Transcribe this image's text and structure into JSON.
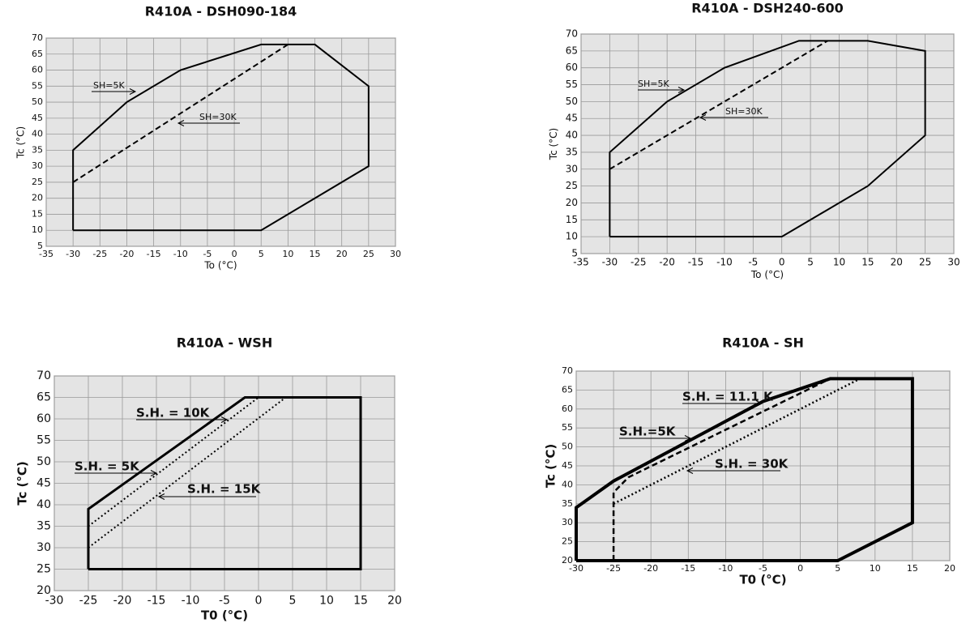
{
  "chart_data": [
    {
      "type": "line",
      "title": "R410A - DSH090-184",
      "x_label": "To (°C)",
      "y_label": "Tc (°C)",
      "xlim": [
        -35,
        30
      ],
      "xticks": [
        -35,
        -30,
        -25,
        -20,
        -15,
        -10,
        -5,
        0,
        5,
        10,
        15,
        20,
        25,
        30
      ],
      "ylim": [
        5,
        70
      ],
      "yticks": [
        5,
        10,
        15,
        20,
        25,
        30,
        35,
        40,
        45,
        50,
        55,
        60,
        65,
        70
      ],
      "grid": true,
      "series": [
        {
          "name": "SH=5K",
          "color": "#000000",
          "style": "solid",
          "x": [
            -30,
            -30,
            -20,
            -10,
            5,
            15,
            25,
            25,
            5,
            -30
          ],
          "values": [
            10,
            35,
            50,
            60,
            68,
            68,
            55,
            30,
            10,
            10
          ]
        },
        {
          "name": "SH=30K",
          "color": "#000000",
          "style": "dashed",
          "x": [
            -30,
            10
          ],
          "values": [
            25,
            68
          ]
        }
      ]
    },
    {
      "type": "line",
      "title": "R410A - DSH240-600",
      "x_label": "To (°C)",
      "y_label": "Tc (°C)",
      "xlim": [
        -35,
        30
      ],
      "xticks": [
        -35,
        -30,
        -25,
        -20,
        -15,
        -10,
        -5,
        0,
        5,
        10,
        15,
        20,
        25,
        30
      ],
      "ylim": [
        5,
        70
      ],
      "yticks": [
        5,
        10,
        15,
        20,
        25,
        30,
        35,
        40,
        45,
        50,
        55,
        60,
        65,
        70
      ],
      "grid": true,
      "series": [
        {
          "name": "SH=5K",
          "color": "#000000",
          "style": "solid",
          "x": [
            -30,
            -30,
            -20,
            -10,
            3,
            15,
            25,
            25,
            15,
            0,
            -30
          ],
          "values": [
            10,
            35,
            50,
            60,
            68,
            68,
            65,
            40,
            25,
            10,
            10
          ]
        },
        {
          "name": "SH=30K",
          "color": "#000000",
          "style": "dashed",
          "x": [
            -30,
            8
          ],
          "values": [
            30,
            68
          ]
        }
      ]
    },
    {
      "type": "line",
      "title": "R410A - WSH",
      "x_label": "T0 (°C)",
      "y_label": "Tc (°C)",
      "xlim": [
        -30,
        20
      ],
      "xticks": [
        -30,
        -25,
        -20,
        -15,
        -10,
        -5,
        0,
        5,
        10,
        15,
        20
      ],
      "ylim": [
        20,
        70
      ],
      "yticks": [
        20,
        25,
        30,
        35,
        40,
        45,
        50,
        55,
        60,
        65,
        70
      ],
      "grid": true,
      "series": [
        {
          "name": "S.H. = 5K",
          "color": "#000000",
          "style": "solid",
          "x": [
            -25,
            -25,
            -2,
            15,
            15,
            -25
          ],
          "values": [
            25,
            39,
            65,
            65,
            25,
            25
          ]
        },
        {
          "name": "S.H. = 10K",
          "color": "#000000",
          "style": "dotted",
          "x": [
            -25,
            0
          ],
          "values": [
            35,
            65
          ]
        },
        {
          "name": "S.H. = 15K",
          "color": "#000000",
          "style": "dotted",
          "x": [
            -25,
            4
          ],
          "values": [
            30,
            65
          ]
        }
      ]
    },
    {
      "type": "line",
      "title": "R410A - SH",
      "x_label": "T0 (°C)",
      "y_label": "Tc (°C)",
      "xlim": [
        -30,
        20
      ],
      "xticks": [
        -30,
        -25,
        -20,
        -15,
        -10,
        -5,
        0,
        5,
        10,
        15,
        20
      ],
      "ylim": [
        20,
        70
      ],
      "yticks": [
        20,
        25,
        30,
        35,
        40,
        45,
        50,
        55,
        60,
        65,
        70
      ],
      "grid": true,
      "series": [
        {
          "name": "S.H. = 11.1 K",
          "color": "#000000",
          "style": "solid",
          "x": [
            -30,
            -30,
            -25,
            -5,
            4,
            15,
            15,
            5,
            -30
          ],
          "values": [
            20,
            34,
            41,
            62,
            68,
            68,
            30,
            20,
            20
          ]
        },
        {
          "name": "S.H.=5K",
          "color": "#000000",
          "style": "dashed",
          "x": [
            -25,
            -25,
            -23,
            4
          ],
          "values": [
            20,
            38,
            42,
            68
          ]
        },
        {
          "name": "S.H. = 30K",
          "color": "#000000",
          "style": "dotted",
          "x": [
            -25,
            8
          ],
          "values": [
            35,
            68
          ]
        }
      ]
    }
  ]
}
